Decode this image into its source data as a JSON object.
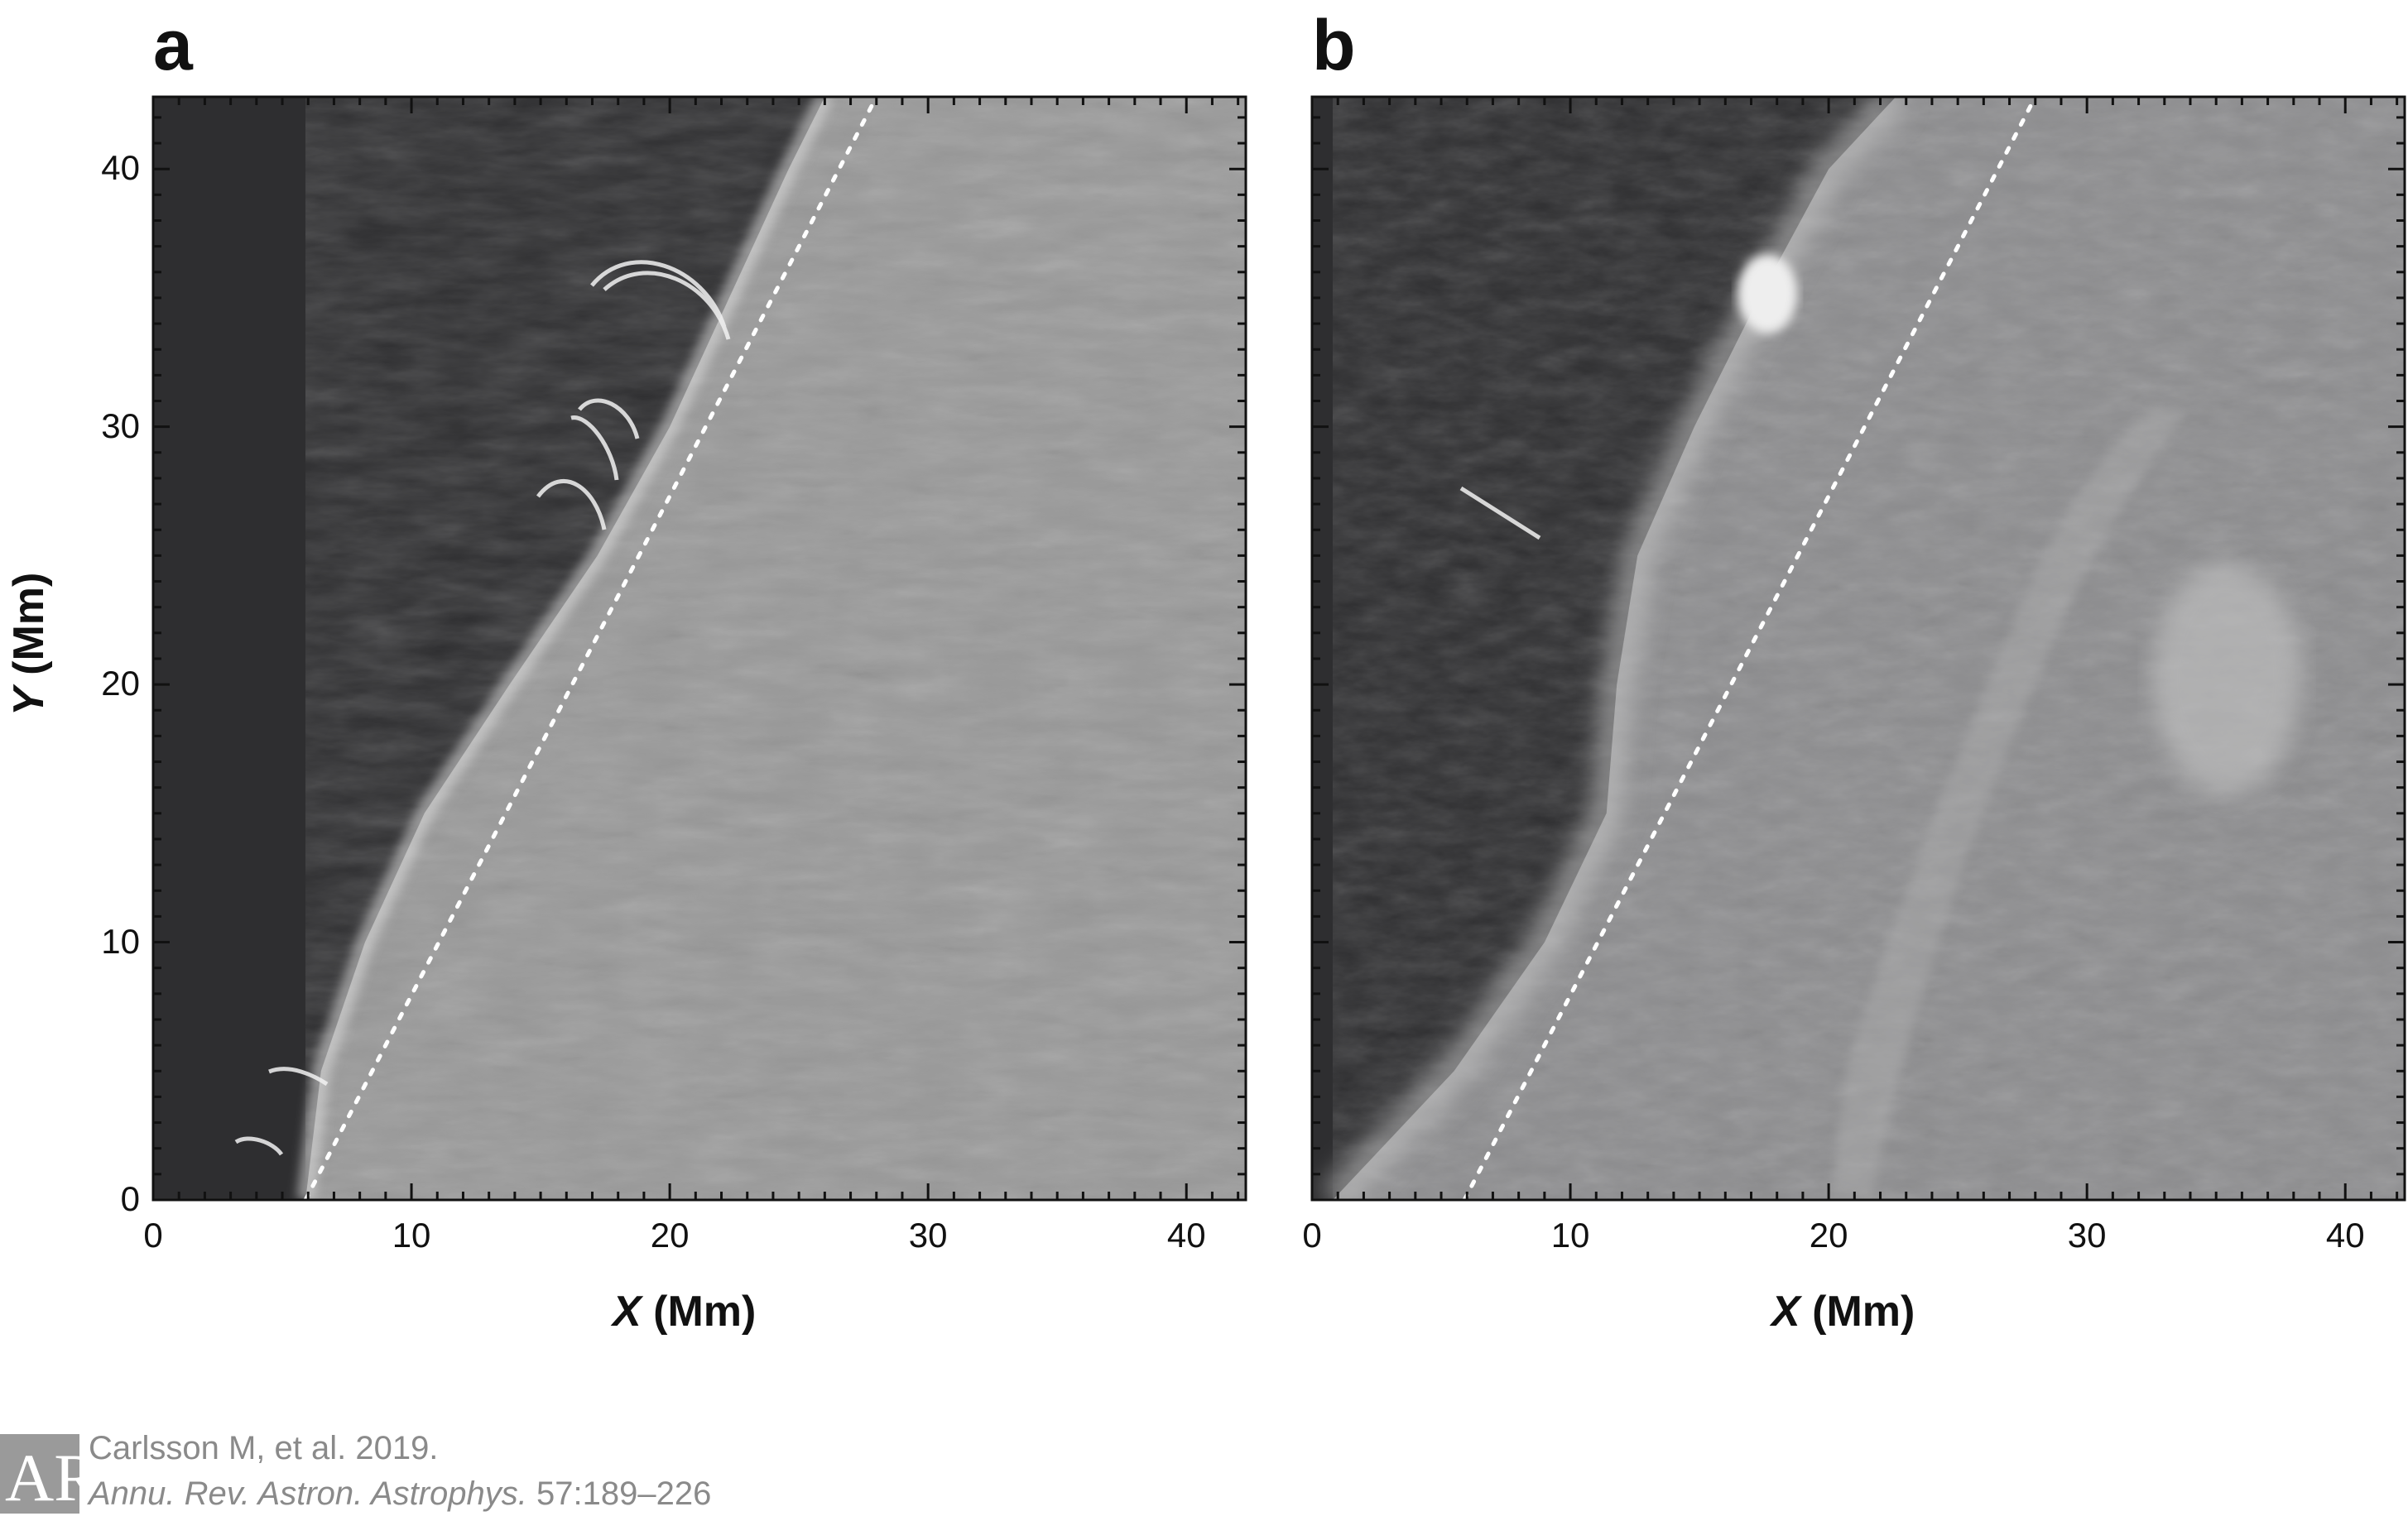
{
  "figure": {
    "panels": [
      {
        "letter": "a",
        "x_label_var": "X",
        "x_label_unit": "(Mm)",
        "y_label_var": "Y",
        "y_label_unit": "(Mm)"
      },
      {
        "letter": "b",
        "x_label_var": "X",
        "x_label_unit": "(Mm)"
      }
    ],
    "x_ticks": [
      "0",
      "10",
      "20",
      "30",
      "40"
    ],
    "y_ticks": [
      "0",
      "10",
      "20",
      "30",
      "40"
    ],
    "x_range_mm": [
      0,
      42.3
    ],
    "y_range_mm": [
      0,
      42.8
    ],
    "dotted_line_mm": {
      "x": [
        5.9,
        28.0
      ],
      "y": [
        0,
        42.8
      ]
    },
    "limb_panel_a_mm": {
      "x": [
        5.9,
        6.5,
        8.2,
        10.5,
        13.8,
        17.2,
        20.0,
        22.3,
        24.6,
        26.0
      ],
      "y": [
        0,
        5,
        10,
        15,
        20,
        25,
        30,
        35,
        40,
        42.8
      ]
    },
    "limb_panel_b_mm": {
      "x": [
        0.8,
        5.5,
        9.0,
        11.4,
        11.8,
        12.6,
        14.8,
        17.3,
        20.0,
        22.6
      ],
      "y": [
        0,
        5,
        10,
        15,
        20,
        25,
        30,
        35,
        40,
        42.8
      ]
    },
    "colors": {
      "sky": "#2e2e30",
      "disk_a": "#999999",
      "disk_b": "#8d8d8f",
      "dotted_line": "#ffffff"
    }
  },
  "citation": {
    "logo_letters": "AR",
    "line1": "Carlsson M, et al. 2019.",
    "journal": "Annu. Rev. Astron. Astrophys.",
    "volume_pages": "57:189–226"
  }
}
